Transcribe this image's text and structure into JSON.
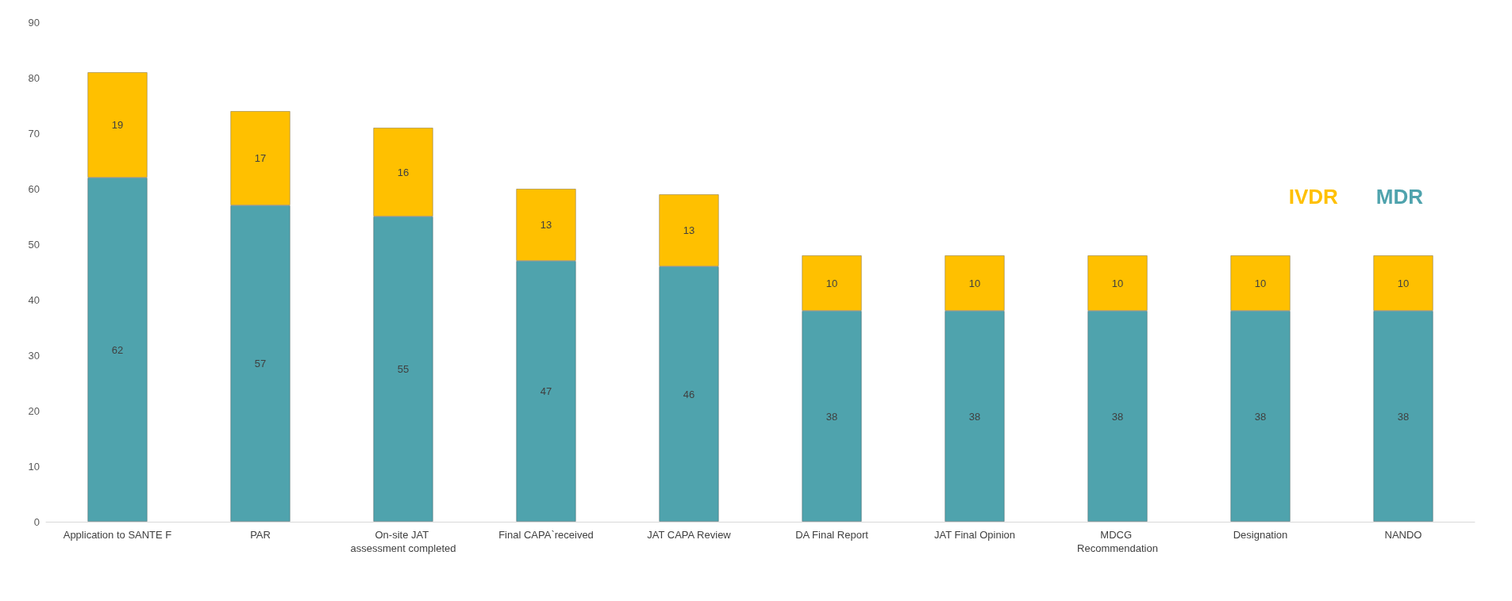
{
  "chart_data": {
    "type": "bar",
    "stacked": true,
    "categories": [
      "Application to SANTE F",
      "PAR",
      "On-site JAT assessment completed",
      "Final CAPA`received",
      "JAT CAPA Review",
      "DA Final Report",
      "JAT Final Opinion",
      "MDCG Recommendation",
      "Designation",
      "NANDO"
    ],
    "series": [
      {
        "name": "MDR",
        "color": "#4fa3ad",
        "values": [
          62,
          57,
          55,
          47,
          46,
          38,
          38,
          38,
          38,
          38
        ]
      },
      {
        "name": "IVDR",
        "color": "#ffc000",
        "values": [
          19,
          17,
          16,
          13,
          13,
          10,
          10,
          10,
          10,
          10
        ]
      }
    ],
    "ylim": [
      0,
      90
    ],
    "yticks": [
      0,
      10,
      20,
      30,
      40,
      50,
      60,
      70,
      80,
      90
    ],
    "data_labels": true,
    "grid": false,
    "legend": "right"
  }
}
